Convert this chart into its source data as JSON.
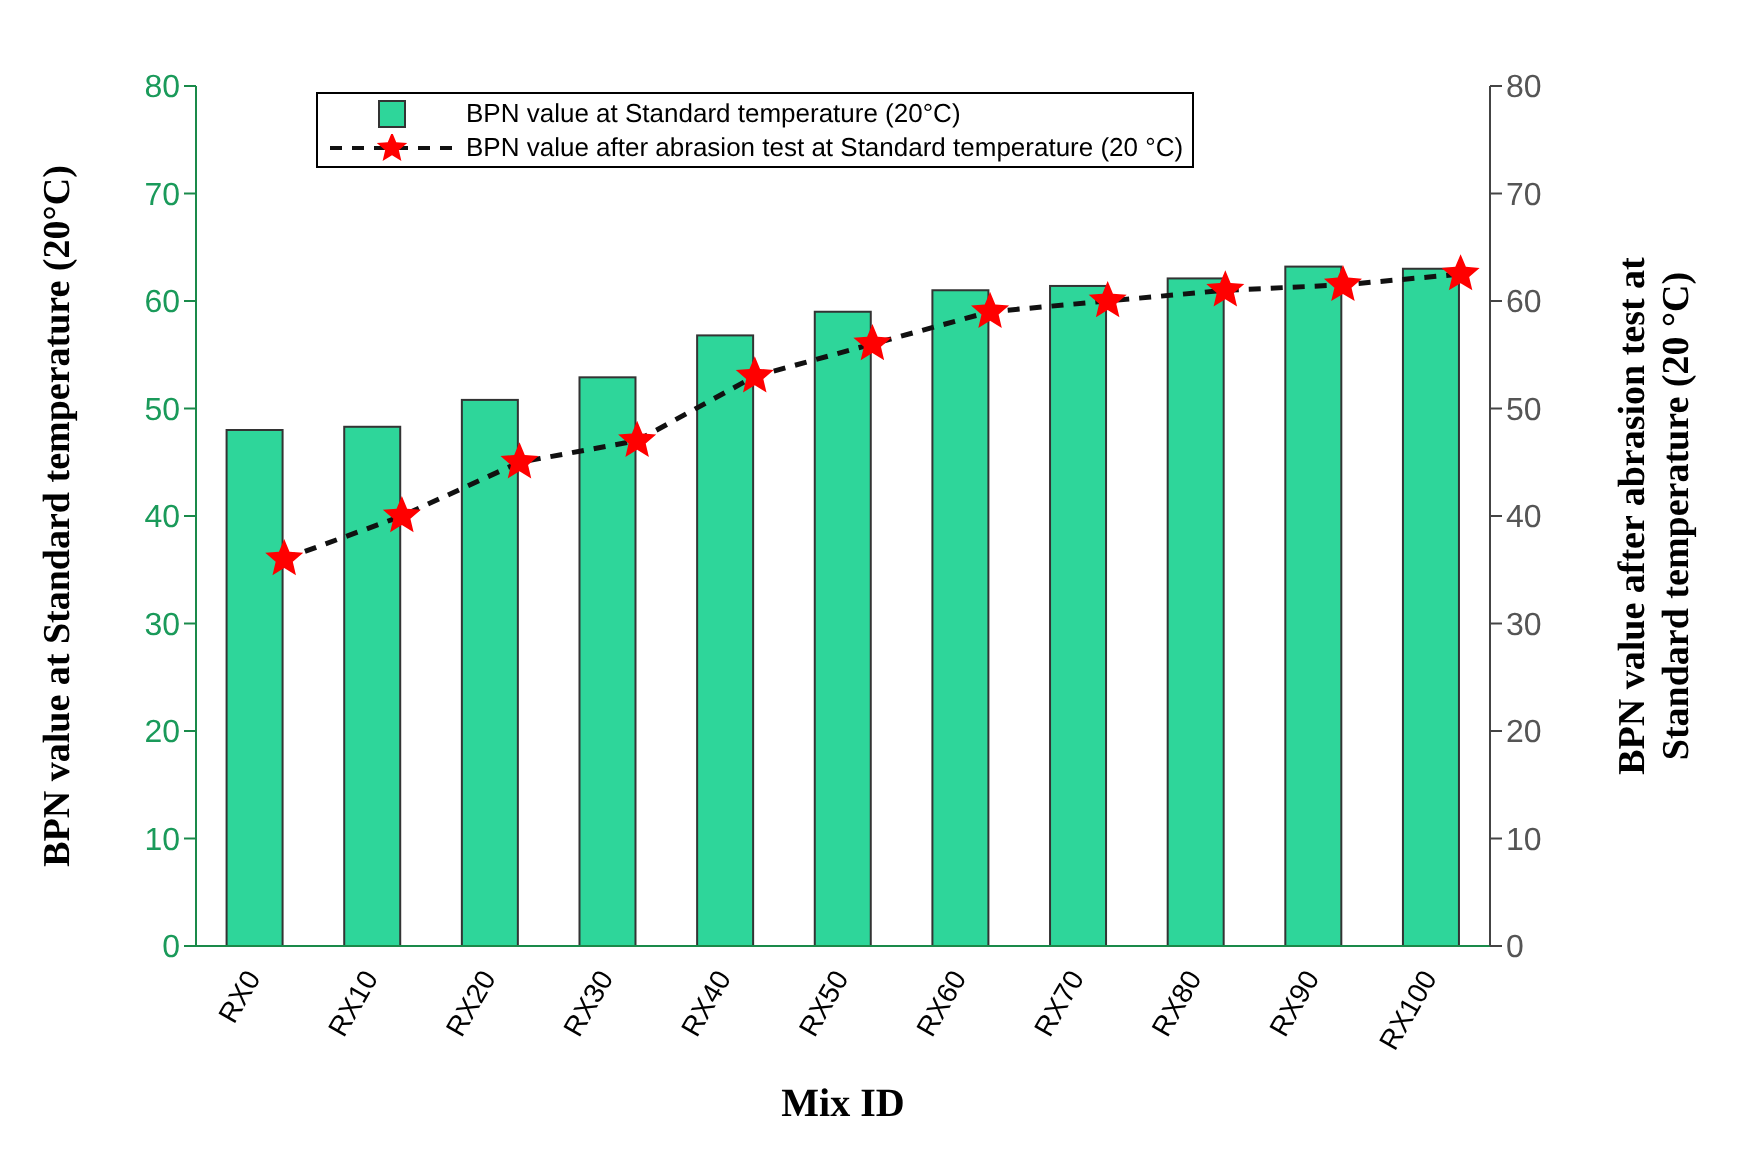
{
  "chart_data": {
    "type": "bar",
    "xlabel": "Mix ID",
    "ylabel": "BPN value at Standard temperature (20°C)",
    "y2label": "BPN value after abrasion test at Standard temperature (20 °C)",
    "categories": [
      "RX0",
      "RX10",
      "RX20",
      "RX30",
      "RX40",
      "RX50",
      "RX60",
      "RX70",
      "RX80",
      "RX90",
      "RX100"
    ],
    "series": [
      {
        "name": "BPN value at Standard temperature (20°C)",
        "color": "#2ed69a",
        "values": [
          48,
          48.3,
          50.8,
          52.9,
          56.8,
          59,
          61,
          61.4,
          62.1,
          63.2,
          63
        ]
      },
      {
        "name": "BPN value after abrasion test at Standard temperature (20 °C)",
        "type": "line",
        "axis": "y2",
        "color": "#ff0000",
        "marker": "star",
        "line_style": "dashed",
        "values": [
          36,
          40,
          45,
          47,
          53,
          56,
          59,
          60,
          61,
          61.5,
          62.5
        ]
      }
    ],
    "ylim": [
      0,
      80
    ],
    "yticks": [
      0,
      10,
      20,
      30,
      40,
      50,
      60,
      70,
      80
    ],
    "y2lim": [
      0,
      80
    ],
    "y2ticks": [
      0,
      10,
      20,
      30,
      40,
      50,
      60,
      70,
      80
    ],
    "grid": false,
    "legend": "top left"
  }
}
